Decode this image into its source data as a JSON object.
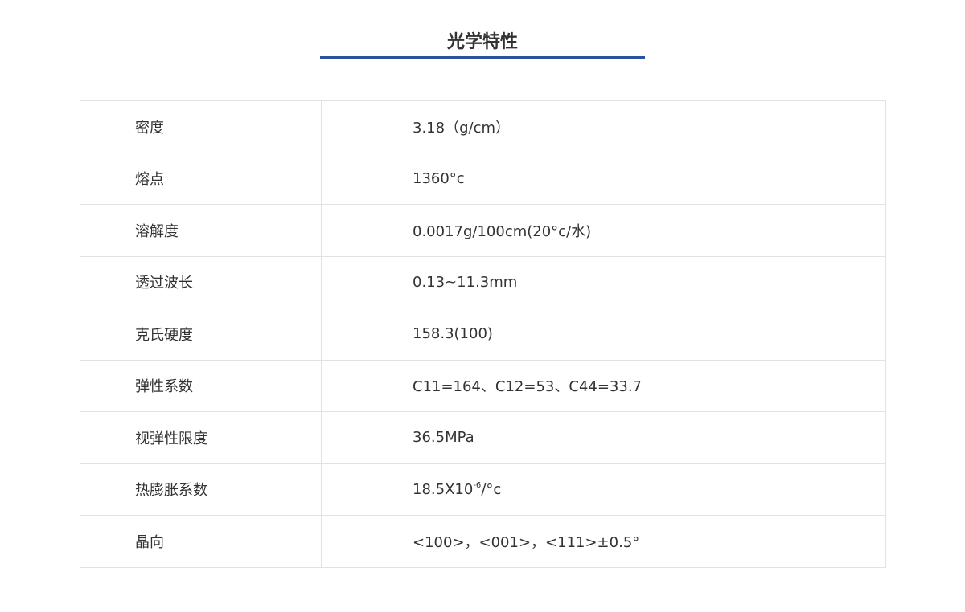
{
  "title": "光学特性",
  "accent_color": "#2a52a0",
  "rows": [
    {
      "label": "密度",
      "value": "3.18（g/cm）"
    },
    {
      "label": "熔点",
      "value": "1360°c"
    },
    {
      "label": "溶解度",
      "value": "0.0017g/100cm(20°c/水)"
    },
    {
      "label": "透过波长",
      "value": "0.13~11.3mm"
    },
    {
      "label": "克氏硬度",
      "value": "158.3(100)"
    },
    {
      "label": "弹性系数",
      "value": "C11=164、C12=53、C44=33.7"
    },
    {
      "label": "视弹性限度",
      "value": "36.5MPa"
    },
    {
      "label": "热膨胀系数",
      "value": "18.5X10",
      "sup": "-6",
      "suffix": "/°c"
    },
    {
      "label": "晶向",
      "value": "<100>，<001>，<111>±0.5°"
    }
  ]
}
